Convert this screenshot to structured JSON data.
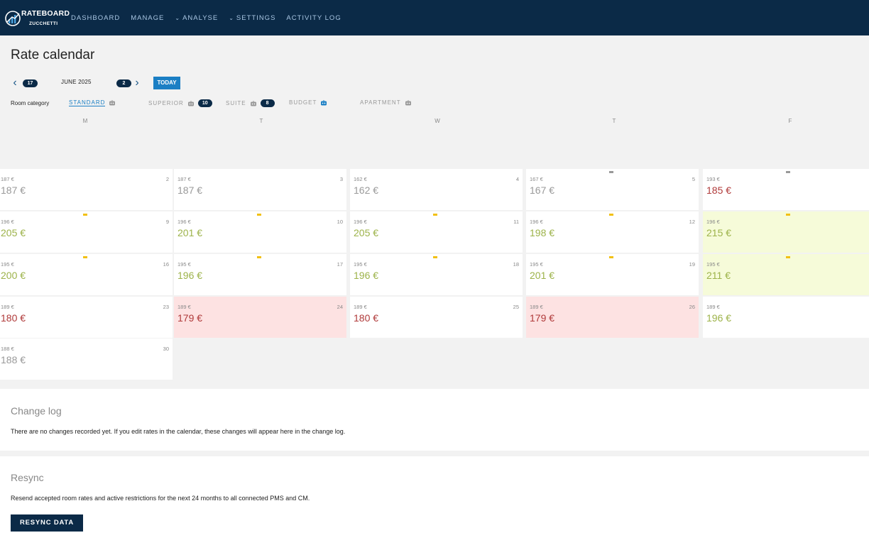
{
  "brand": {
    "name": "RATEBOARD",
    "sub": "ZUCCHETTI"
  },
  "nav": [
    {
      "label": "DASHBOARD",
      "chevron": false
    },
    {
      "label": "MANAGE",
      "chevron": false
    },
    {
      "label": "ANALYSE",
      "chevron": true
    },
    {
      "label": "SETTINGS",
      "chevron": true
    },
    {
      "label": "ACTIVITY LOG",
      "chevron": false
    }
  ],
  "page": {
    "title": "Rate calendar"
  },
  "month_nav": {
    "prev_count": "17",
    "month": "JUNE 2025",
    "next_count": "2",
    "today": "TODAY"
  },
  "room_category": {
    "label": "Room category",
    "items": [
      {
        "name": "STANDARD",
        "active": true,
        "count": null
      },
      {
        "name": "SUPERIOR",
        "active": false,
        "count": "10"
      },
      {
        "name": "SUITE",
        "active": false,
        "count": "8"
      },
      {
        "name": "BUDGET",
        "active": false,
        "count": null
      },
      {
        "name": "APARTMENT",
        "active": false,
        "count": null
      }
    ]
  },
  "weekdays": [
    "M",
    "T",
    "W",
    "T",
    "F"
  ],
  "calendar": {
    "rows": [
      [
        {
          "day": "2",
          "base": "187 €",
          "price": "187 €",
          "tone": "neutral",
          "bg": "white",
          "marker": "none"
        },
        {
          "day": "3",
          "base": "187 €",
          "price": "187 €",
          "tone": "neutral",
          "bg": "white",
          "marker": "none"
        },
        {
          "day": "4",
          "base": "162 €",
          "price": "162 €",
          "tone": "neutral",
          "bg": "white",
          "marker": "none"
        },
        {
          "day": "5",
          "base": "167 €",
          "price": "167 €",
          "tone": "neutral",
          "bg": "white",
          "marker": "gray"
        },
        {
          "day": "",
          "base": "193 €",
          "price": "185 €",
          "tone": "red",
          "bg": "white",
          "marker": "gray"
        }
      ],
      [
        {
          "day": "9",
          "base": "196 €",
          "price": "205 €",
          "tone": "green",
          "bg": "white",
          "marker": "yellow"
        },
        {
          "day": "10",
          "base": "196 €",
          "price": "201 €",
          "tone": "green",
          "bg": "white",
          "marker": "yellow"
        },
        {
          "day": "11",
          "base": "196 €",
          "price": "205 €",
          "tone": "green",
          "bg": "white",
          "marker": "yellow"
        },
        {
          "day": "12",
          "base": "196 €",
          "price": "198 €",
          "tone": "green",
          "bg": "white",
          "marker": "yellow"
        },
        {
          "day": "",
          "base": "196 €",
          "price": "215 €",
          "tone": "green",
          "bg": "yellow",
          "marker": "yellow"
        }
      ],
      [
        {
          "day": "16",
          "base": "195 €",
          "price": "200 €",
          "tone": "green",
          "bg": "white",
          "marker": "yellow"
        },
        {
          "day": "17",
          "base": "195 €",
          "price": "196 €",
          "tone": "green",
          "bg": "white",
          "marker": "yellow"
        },
        {
          "day": "18",
          "base": "195 €",
          "price": "196 €",
          "tone": "green",
          "bg": "white",
          "marker": "yellow"
        },
        {
          "day": "19",
          "base": "195 €",
          "price": "201 €",
          "tone": "green",
          "bg": "white",
          "marker": "yellow"
        },
        {
          "day": "",
          "base": "195 €",
          "price": "211 €",
          "tone": "green",
          "bg": "yellow",
          "marker": "yellow"
        }
      ],
      [
        {
          "day": "23",
          "base": "189 €",
          "price": "180 €",
          "tone": "red",
          "bg": "white",
          "marker": "none"
        },
        {
          "day": "24",
          "base": "189 €",
          "price": "179 €",
          "tone": "red",
          "bg": "red",
          "marker": "none"
        },
        {
          "day": "25",
          "base": "189 €",
          "price": "180 €",
          "tone": "red",
          "bg": "white",
          "marker": "none"
        },
        {
          "day": "26",
          "base": "189 €",
          "price": "179 €",
          "tone": "red",
          "bg": "red",
          "marker": "none"
        },
        {
          "day": "",
          "base": "189 €",
          "price": "196 €",
          "tone": "green",
          "bg": "white",
          "marker": "none"
        }
      ],
      [
        {
          "day": "30",
          "base": "188 €",
          "price": "188 €",
          "tone": "neutral",
          "bg": "white",
          "marker": "none"
        }
      ]
    ]
  },
  "change_log": {
    "title": "Change log",
    "text": "There are no changes recorded yet. If you edit rates in the calendar, these changes will appear here in the change log."
  },
  "resync": {
    "title": "Resync",
    "text": "Resend accepted room rates and active restrictions for the next 24 months to all connected PMS and CM.",
    "button": "RESYNC DATA"
  },
  "colors": {
    "navbar": "#0b2a47",
    "accent": "#1b7fc4",
    "price_red": "#b03a3a",
    "price_green": "#9db34a",
    "cell_red": "#fde2e2",
    "cell_yellow": "#f6fbd9"
  }
}
